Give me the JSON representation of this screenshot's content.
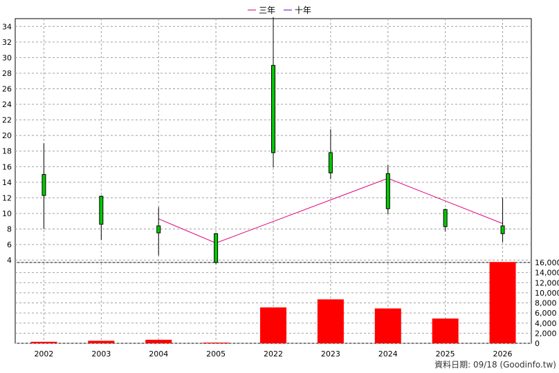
{
  "legend": [
    {
      "label": "三年",
      "color": "#e0007a"
    },
    {
      "label": "十年",
      "color": "#7a00c8"
    }
  ],
  "source_note": "資料日期: 09/18 (Goodinfo.tw)",
  "colors": {
    "candle_up": "#00c800",
    "volume_bar": "#ff0000",
    "ma3": "#e0007a",
    "grid": "#a0a0a0"
  },
  "chart_data": [
    {
      "type": "candlestick",
      "categories": [
        "2002",
        "2003",
        "2004",
        "2005",
        "2022",
        "2023",
        "2024",
        "2025",
        "2026"
      ],
      "y_ticks": [
        4,
        6,
        8,
        10,
        12,
        14,
        16,
        18,
        20,
        22,
        24,
        26,
        28,
        30,
        32,
        34
      ],
      "ylim": [
        3.7,
        35
      ],
      "grid": true,
      "candles": [
        {
          "open": 12.3,
          "close": 15.0,
          "high": 19.0,
          "low": 8.0
        },
        {
          "open": 8.6,
          "close": 12.2,
          "high": 12.3,
          "low": 6.6
        },
        {
          "open": 7.5,
          "close": 8.4,
          "high": 10.8,
          "low": 4.6
        },
        {
          "open": 3.7,
          "close": 7.4,
          "high": 7.5,
          "low": 3.5
        },
        {
          "open": 17.8,
          "close": 29.0,
          "high": 35.2,
          "low": 15.9
        },
        {
          "open": 15.2,
          "close": 17.8,
          "high": 20.8,
          "low": 14.4
        },
        {
          "open": 10.6,
          "close": 15.1,
          "high": 16.2,
          "low": 9.9
        },
        {
          "open": 8.3,
          "close": 10.5,
          "high": 10.6,
          "low": 7.7
        },
        {
          "open": 7.4,
          "close": 8.4,
          "high": 12.0,
          "low": 6.3
        }
      ],
      "series": [
        {
          "name": "三年",
          "values": [
            null,
            null,
            9.3,
            6.2,
            null,
            null,
            14.5,
            null,
            8.7
          ]
        }
      ]
    },
    {
      "type": "bar",
      "categories": [
        "2002",
        "2003",
        "2004",
        "2005",
        "2022",
        "2023",
        "2024",
        "2025",
        "2026"
      ],
      "values": [
        300,
        500,
        700,
        0,
        7100,
        8700,
        6900,
        4900,
        16100
      ],
      "y_ticks": [
        0,
        2000,
        4000,
        6000,
        8000,
        10000,
        12000,
        14000,
        16000
      ],
      "y_tick_labels": [
        "0",
        "2,000",
        "4,000",
        "6,000",
        "8,000",
        "10,000",
        "12,000",
        "14,000",
        "16,000"
      ],
      "ylim": [
        0,
        16000
      ],
      "grid": true
    }
  ]
}
